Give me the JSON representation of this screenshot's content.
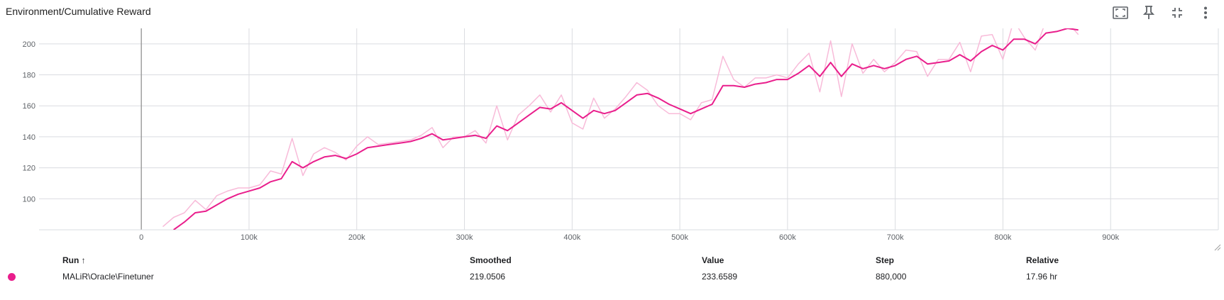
{
  "card": {
    "title": "Environment/Cumulative Reward"
  },
  "toolbar": {
    "items": [
      {
        "name": "fit-domain-icon"
      },
      {
        "name": "pin-icon"
      },
      {
        "name": "collapse-icon"
      },
      {
        "name": "more-vert-icon"
      }
    ]
  },
  "colors": {
    "smoothed": "#e91e8c",
    "raw": "#f8bbd9",
    "grid": "#dadce0",
    "axis_zero": "#9e9e9e"
  },
  "chart_data": {
    "type": "line",
    "title": "Environment/Cumulative Reward",
    "xlabel": "",
    "ylabel": "",
    "xlim": [
      -95000,
      1000000
    ],
    "ylim": [
      80,
      210
    ],
    "x_ticks": [
      0,
      100000,
      200000,
      300000,
      400000,
      500000,
      600000,
      700000,
      800000,
      900000
    ],
    "x_tick_labels": [
      "0",
      "100k",
      "200k",
      "300k",
      "400k",
      "500k",
      "600k",
      "700k",
      "800k",
      "900k"
    ],
    "y_ticks": [
      100,
      120,
      140,
      160,
      180,
      200
    ],
    "y_tick_labels": [
      "100",
      "120",
      "140",
      "160",
      "180",
      "200"
    ],
    "grid": true,
    "series": [
      {
        "name": "MALiR\\Oracle\\Finetuner",
        "role": "raw",
        "x": [
          20000,
          30000,
          40000,
          50000,
          60000,
          70000,
          80000,
          90000,
          100000,
          110000,
          120000,
          130000,
          140000,
          150000,
          160000,
          170000,
          180000,
          190000,
          200000,
          210000,
          220000,
          230000,
          240000,
          250000,
          260000,
          270000,
          280000,
          290000,
          300000,
          310000,
          320000,
          330000,
          340000,
          350000,
          360000,
          370000,
          380000,
          390000,
          400000,
          410000,
          420000,
          430000,
          440000,
          450000,
          460000,
          470000,
          480000,
          490000,
          500000,
          510000,
          520000,
          530000,
          540000,
          550000,
          560000,
          570000,
          580000,
          590000,
          600000,
          610000,
          620000,
          630000,
          640000,
          650000,
          660000,
          670000,
          680000,
          690000,
          700000,
          710000,
          720000,
          730000,
          740000,
          750000,
          760000,
          770000,
          780000,
          790000,
          800000,
          810000,
          820000,
          830000,
          840000,
          850000,
          860000,
          870000
        ],
        "y": [
          82,
          88,
          91,
          99,
          93,
          102,
          105,
          107,
          107,
          109,
          118,
          116,
          139,
          115,
          129,
          133,
          130,
          125,
          134,
          140,
          135,
          136,
          137,
          138,
          141,
          146,
          133,
          140,
          140,
          144,
          136,
          160,
          138,
          154,
          160,
          167,
          156,
          167,
          149,
          145,
          165,
          152,
          158,
          166,
          175,
          170,
          160,
          155,
          155,
          151,
          162,
          164,
          192,
          177,
          172,
          178,
          178,
          180,
          178,
          187,
          194,
          169,
          202,
          166,
          200,
          181,
          190,
          182,
          188,
          196,
          195,
          179,
          190,
          190,
          201,
          182,
          205,
          206,
          190,
          215,
          204,
          196,
          215,
          211,
          214,
          206
        ]
      },
      {
        "name": "MALiR\\Oracle\\Finetuner",
        "role": "smoothed",
        "x": [
          30000,
          40000,
          50000,
          60000,
          70000,
          80000,
          90000,
          100000,
          110000,
          120000,
          130000,
          140000,
          150000,
          160000,
          170000,
          180000,
          190000,
          200000,
          210000,
          220000,
          230000,
          240000,
          250000,
          260000,
          270000,
          280000,
          290000,
          300000,
          310000,
          320000,
          330000,
          340000,
          350000,
          360000,
          370000,
          380000,
          390000,
          400000,
          410000,
          420000,
          430000,
          440000,
          450000,
          460000,
          470000,
          480000,
          490000,
          500000,
          510000,
          520000,
          530000,
          540000,
          550000,
          560000,
          570000,
          580000,
          590000,
          600000,
          610000,
          620000,
          630000,
          640000,
          650000,
          660000,
          670000,
          680000,
          690000,
          700000,
          710000,
          720000,
          730000,
          740000,
          750000,
          760000,
          770000,
          780000,
          790000,
          800000,
          810000,
          820000,
          830000,
          840000,
          850000,
          860000,
          870000
        ],
        "y": [
          80,
          85,
          91,
          92,
          96,
          100,
          103,
          105,
          107,
          111,
          113,
          124,
          120,
          124,
          127,
          128,
          126,
          129,
          133,
          134,
          135,
          136,
          137,
          139,
          142,
          138,
          139,
          140,
          141,
          139,
          147,
          144,
          149,
          154,
          159,
          158,
          162,
          157,
          152,
          157,
          155,
          157,
          162,
          167,
          168,
          165,
          161,
          158,
          155,
          158,
          161,
          173,
          173,
          172,
          174,
          175,
          177,
          177,
          181,
          186,
          179,
          188,
          179,
          187,
          184,
          186,
          184,
          186,
          190,
          192,
          187,
          188,
          189,
          193,
          189,
          195,
          199,
          196,
          203,
          203,
          200,
          207,
          208,
          210,
          209
        ]
      }
    ]
  },
  "runs_table": {
    "headers": {
      "run": "Run ↑",
      "smoothed": "Smoothed",
      "value": "Value",
      "step": "Step",
      "relative": "Relative"
    },
    "rows": [
      {
        "run": "MALiR\\Oracle\\Finetuner",
        "smoothed": "219.0506",
        "value": "233.6589",
        "step": "880,000",
        "relative": "17.96 hr",
        "color": "#e91e8c"
      }
    ]
  }
}
